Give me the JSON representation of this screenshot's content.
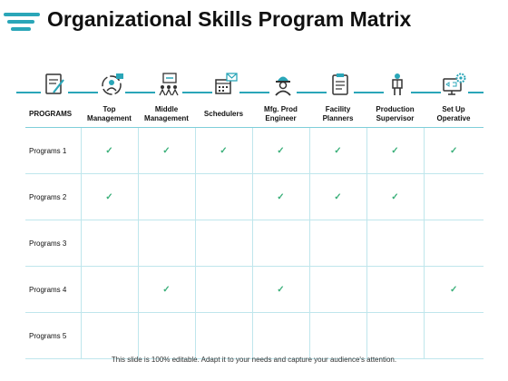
{
  "title": "Organizational Skills Program Matrix",
  "colors": {
    "accent": "#2aa6b8",
    "check": "#3bb07a",
    "grid": "#bfe6ec"
  },
  "icons": [
    "document-pen-icon",
    "cycle-people-icon",
    "presenter-group-icon",
    "calendar-mail-icon",
    "worker-helmet-icon",
    "clipboard-icon",
    "supervisor-icon",
    "monitor-gear-icon"
  ],
  "header": {
    "programs": "PROGRAMS",
    "columns": [
      "Top Management",
      "Middle Management",
      "Schedulers",
      "Mfg. Prod Engineer",
      "Facility Planners",
      "Production Supervisor",
      "Set Up Operative"
    ]
  },
  "check_symbol": "✓",
  "rows": [
    {
      "label": "Programs 1",
      "checks": [
        true,
        true,
        true,
        true,
        true,
        true,
        true
      ]
    },
    {
      "label": "Programs 2",
      "checks": [
        true,
        false,
        false,
        true,
        true,
        true,
        false
      ]
    },
    {
      "label": "Programs 3",
      "checks": [
        false,
        false,
        false,
        false,
        false,
        false,
        false
      ]
    },
    {
      "label": "Programs 4",
      "checks": [
        false,
        true,
        false,
        true,
        false,
        false,
        true
      ]
    },
    {
      "label": "Programs 5",
      "checks": [
        false,
        false,
        false,
        false,
        false,
        false,
        false
      ]
    }
  ],
  "footer": "This slide is 100% editable. Adapt it to your needs and capture your audience's attention."
}
